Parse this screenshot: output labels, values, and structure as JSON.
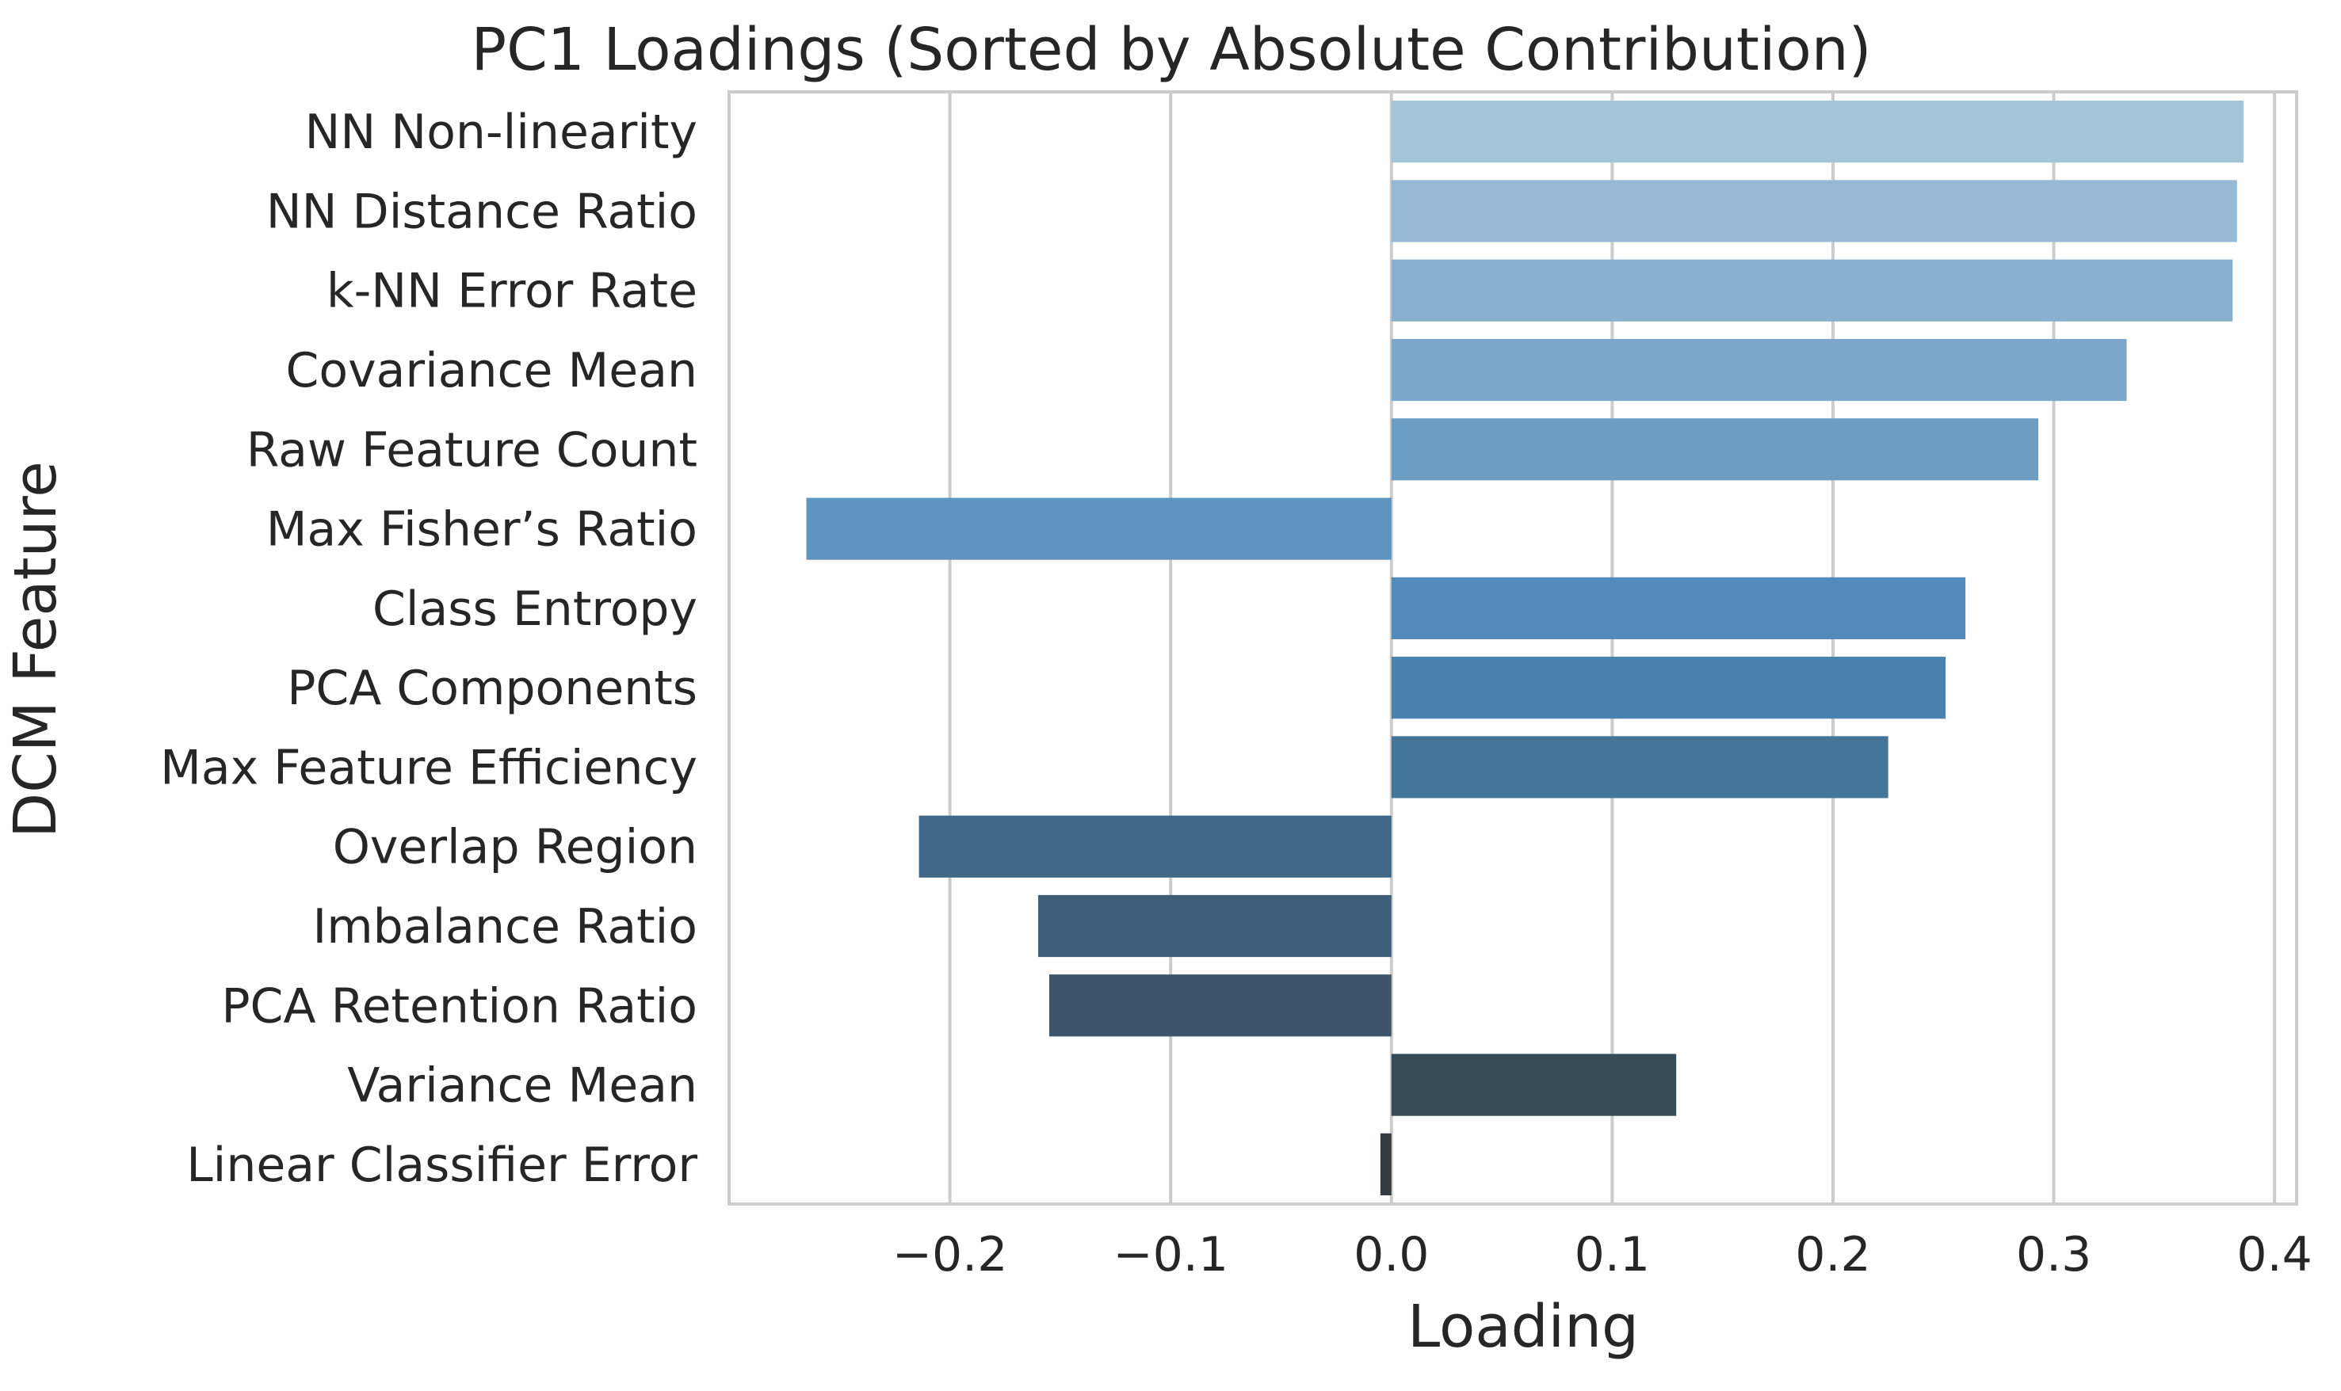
{
  "chart_data": {
    "type": "bar",
    "orientation": "horizontal",
    "title": "PC1 Loadings (Sorted by Absolute Contribution)",
    "xlabel": "Loading",
    "ylabel": "DCM Feature",
    "xlim": [
      -0.3,
      0.41
    ],
    "xticks": [
      -0.2,
      -0.1,
      0.0,
      0.1,
      0.2,
      0.3,
      0.4
    ],
    "xtick_labels": [
      "−0.2",
      "−0.1",
      "0.0",
      "0.1",
      "0.2",
      "0.3",
      "0.4"
    ],
    "grid": true,
    "legend": "none",
    "categories": [
      "NN Non-linearity",
      "NN Distance Ratio",
      "k-NN Error Rate",
      "Covariance Mean",
      "Raw Feature Count",
      "Max Fisher’s Ratio",
      "Class Entropy",
      "PCA Components",
      "Max Feature Efficiency",
      "Overlap Region",
      "Imbalance Ratio",
      "PCA Retention Ratio",
      "Variance Mean",
      "Linear Classifier Error"
    ],
    "values": [
      0.386,
      0.383,
      0.381,
      0.333,
      0.293,
      -0.265,
      0.26,
      0.251,
      0.225,
      -0.214,
      -0.16,
      -0.155,
      0.129,
      -0.005
    ],
    "colors": [
      "#a3c4d9",
      "#96bad5",
      "#89b0cf",
      "#7ca7c9",
      "#6d9dc2",
      "#5f94c0",
      "#508bbc",
      "#4a82ae",
      "#457699",
      "#416987",
      "#3e5f7c",
      "#3d546b",
      "#384b58",
      "#333a42"
    ]
  }
}
